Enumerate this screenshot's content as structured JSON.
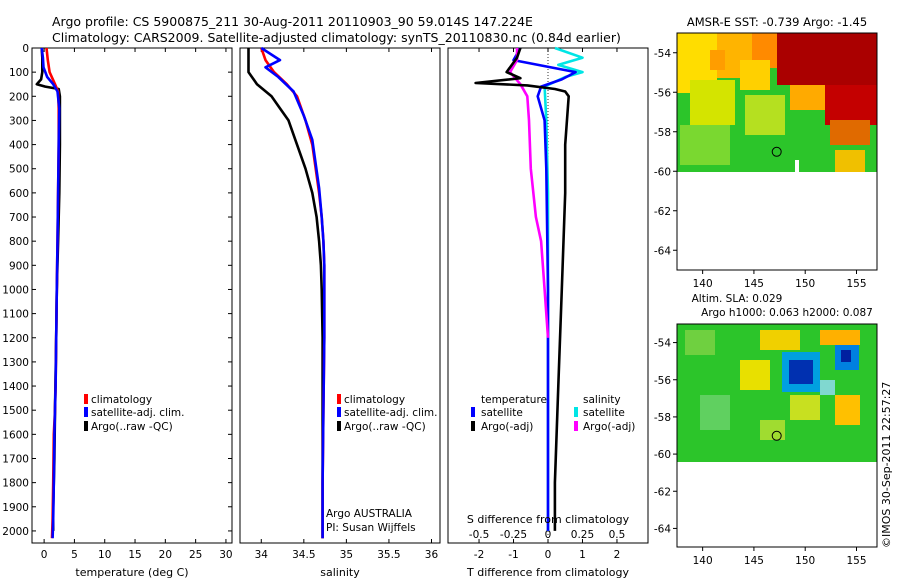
{
  "title": {
    "line1": "Argo profile: CS 5900875_211 30-Aug-2011 20110903_90 59.014S 147.224E",
    "line2": "Climatology: CARS2009. Satellite-adjusted climatology: synTS_20110830.nc (0.84d earlier)"
  },
  "colors": {
    "climatology": "#ff0000",
    "satellite": "#0000ff",
    "argo": "#000000",
    "satellite_s": "#00e5e5",
    "argo_s": "#ff00ff"
  },
  "chart_data": [
    {
      "type": "line",
      "id": "temperature",
      "xlabel": "temperature (deg C)",
      "ylabel": "",
      "xlim": [
        -2,
        31
      ],
      "ylim": [
        2050,
        0
      ],
      "xticks": [
        0,
        5,
        10,
        15,
        20,
        25,
        30
      ],
      "yticks": [
        0,
        100,
        200,
        300,
        400,
        500,
        600,
        700,
        800,
        900,
        1000,
        1100,
        1200,
        1300,
        1400,
        1500,
        1600,
        1700,
        1800,
        1900,
        2000
      ],
      "legend_placement": "middle-center",
      "series": [
        {
          "name": "climatology",
          "x": [
            0.4,
            0.6,
            0.9,
            1.8,
            2.3,
            2.4,
            2.4,
            2.3,
            2.2,
            2.1,
            2.0,
            1.9,
            1.8,
            1.6,
            1.5,
            1.4,
            1.3
          ],
          "y": [
            0,
            50,
            100,
            150,
            180,
            250,
            400,
            600,
            800,
            1000,
            1200,
            1400,
            1500,
            1600,
            1800,
            1950,
            2030
          ]
        },
        {
          "name": "satellite-adj. clim.",
          "x": [
            -0.4,
            -0.2,
            -0.1,
            0.5,
            1.5,
            2.2,
            2.5,
            2.4,
            2.3,
            2.2,
            2.1,
            2.0,
            1.9,
            1.7,
            1.6,
            1.5,
            1.4
          ],
          "y": [
            0,
            40,
            80,
            120,
            150,
            180,
            250,
            400,
            600,
            800,
            1000,
            1200,
            1400,
            1600,
            1800,
            1950,
            2030
          ]
        },
        {
          "name": "Argo(..raw -QC)",
          "x": [
            -0.4,
            -0.3,
            -0.3,
            -0.5,
            -1.2,
            0.2,
            2.4,
            2.6,
            2.6,
            2.5,
            2.3,
            2.1,
            2.0,
            1.8,
            1.7,
            1.5,
            1.5
          ],
          "y": [
            0,
            40,
            100,
            130,
            150,
            160,
            170,
            200,
            400,
            600,
            800,
            1000,
            1200,
            1500,
            1700,
            1900,
            2000
          ]
        }
      ]
    },
    {
      "type": "line",
      "id": "salinity",
      "xlabel": "salinity",
      "ylabel": "",
      "xlim": [
        33.75,
        36.1
      ],
      "ylim": [
        2050,
        0
      ],
      "xticks": [
        34,
        34.5,
        35,
        35.5,
        36
      ],
      "xtick_labels": [
        "34",
        "34.5",
        "35",
        "35.5",
        "36"
      ],
      "legend_placement": "middle-right",
      "annotation": [
        "Argo AUSTRALIA",
        "PI: Susan Wijffels"
      ],
      "series": [
        {
          "name": "climatology",
          "x": [
            34.0,
            34.05,
            34.15,
            34.3,
            34.42,
            34.52,
            34.6,
            34.64,
            34.68,
            34.71,
            34.73,
            34.74,
            34.74,
            34.74,
            34.73,
            34.72,
            34.72
          ],
          "y": [
            0,
            50,
            100,
            150,
            200,
            300,
            400,
            500,
            600,
            700,
            800,
            900,
            1000,
            1200,
            1500,
            1800,
            2030
          ]
        },
        {
          "name": "satellite-adj. clim.",
          "x": [
            34.0,
            34.22,
            34.05,
            34.2,
            34.38,
            34.5,
            34.6,
            34.64,
            34.68,
            34.71,
            34.73,
            34.74,
            34.74,
            34.74,
            34.73,
            34.72,
            34.72
          ],
          "y": [
            0,
            50,
            80,
            120,
            180,
            280,
            380,
            480,
            580,
            700,
            800,
            900,
            1000,
            1200,
            1500,
            1800,
            2030
          ]
        },
        {
          "name": "Argo(..raw -QC)",
          "x": [
            33.85,
            33.85,
            33.95,
            34.12,
            34.22,
            34.32,
            34.42,
            34.52,
            34.6,
            34.65,
            34.68,
            34.7,
            34.71,
            34.72,
            34.72,
            34.72,
            34.72
          ],
          "y": [
            0,
            100,
            150,
            200,
            250,
            300,
            400,
            500,
            600,
            700,
            800,
            900,
            1000,
            1200,
            1500,
            1800,
            2030
          ]
        }
      ]
    },
    {
      "type": "line",
      "id": "difference",
      "xlabel": "T difference from climatology",
      "top_axis_label": "S difference from climatology",
      "xlim": [
        -2.9,
        2.9
      ],
      "ylim": [
        2050,
        0
      ],
      "xticks": [
        -2,
        -1,
        0,
        1,
        2
      ],
      "top_xticks": [
        -0.5,
        -0.25,
        0,
        0.25,
        0.5
      ],
      "top_xtick_labels": [
        "-0.5",
        "-0.25",
        "0",
        "0.25",
        "0.5"
      ],
      "legend": {
        "temperature_heading": "temperature",
        "salinity_heading": "salinity",
        "t_satellite": "satellite",
        "t_argo": "Argo(-adj)",
        "s_satellite": "satellite",
        "s_argo": "Argo(-adj)"
      },
      "series": [
        {
          "name": "temperature satellite",
          "x": [
            -0.8,
            -1.0,
            0.8,
            0.4,
            -0.2,
            -0.3,
            -0.1,
            -0.05,
            0.0,
            0.0,
            0.0
          ],
          "y": [
            0,
            50,
            100,
            130,
            160,
            200,
            300,
            500,
            1000,
            1500,
            2000
          ]
        },
        {
          "name": "temperature Argo(-adj)",
          "x": [
            -0.8,
            -0.9,
            -1.2,
            -0.8,
            -2.1,
            -0.6,
            0.2,
            0.5,
            0.6,
            0.5,
            0.5,
            0.4,
            0.3,
            0.2,
            0.2
          ],
          "y": [
            0,
            40,
            100,
            125,
            145,
            155,
            170,
            180,
            200,
            400,
            600,
            1000,
            1400,
            1800,
            2000
          ]
        },
        {
          "name": "salinity satellite",
          "x": [
            0.2,
            1.0,
            0.3,
            1.0,
            0.5,
            -0.1,
            -0.05,
            0.0,
            0.0,
            0.0
          ],
          "y": [
            0,
            40,
            70,
            100,
            120,
            160,
            300,
            600,
            1200,
            2000
          ]
        },
        {
          "name": "salinity Argo(-adj)",
          "x": [
            -0.9,
            -0.9,
            -1.1,
            -0.8,
            -0.6,
            -0.55,
            -0.5,
            -0.35,
            -0.2,
            -0.1,
            0.0
          ],
          "y": [
            0,
            50,
            100,
            150,
            200,
            300,
            500,
            700,
            800,
            1000,
            1200
          ]
        }
      ]
    },
    {
      "type": "heatmap",
      "id": "sst-map",
      "title": "AMSR-E SST: -0.739 Argo: -1.45",
      "xlim": [
        137.5,
        157
      ],
      "ylim": [
        -65,
        -53
      ],
      "xticks": [
        140,
        145,
        150,
        155
      ],
      "yticks": [
        -54,
        -56,
        -58,
        -60,
        -62,
        -64
      ],
      "float_position": [
        147.224,
        -59.014
      ]
    },
    {
      "type": "heatmap",
      "id": "sla-map",
      "title_lines": [
        "Altim. SLA: 0.029",
        "Argo h1000: 0.063 h2000: 0.087"
      ],
      "xlim": [
        137.5,
        157
      ],
      "ylim": [
        -65,
        -53
      ],
      "xticks": [
        140,
        145,
        150,
        155
      ],
      "yticks": [
        -54,
        -56,
        -58,
        -60,
        -62,
        -64
      ],
      "float_position": [
        147.224,
        -59.014
      ]
    }
  ],
  "watermark": "©IMOS 30-Sep-2011 22:57:27"
}
